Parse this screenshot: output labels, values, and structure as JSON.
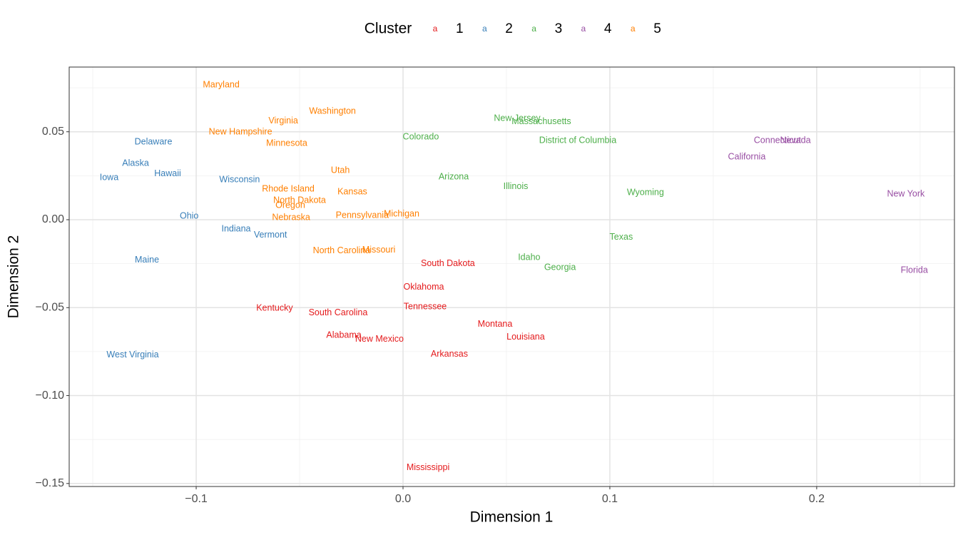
{
  "chart_data": {
    "type": "scatter",
    "marker_glyph": "a",
    "x_label": "Dimension 1",
    "y_label": "Dimension 2",
    "legend": {
      "title": "Cluster",
      "position": "top"
    },
    "grid": true,
    "xlim": [
      -0.1614,
      0.2666
    ],
    "ylim": [
      -0.1517,
      0.0868
    ],
    "xticks": [
      {
        "value": -0.1,
        "label": "−0.1"
      },
      {
        "value": 0,
        "label": "0.0"
      },
      0.1,
      0.2
    ],
    "yticks": [
      {
        "value": -0.15,
        "label": "−0.15"
      },
      {
        "value": -0.1,
        "label": "−0.10"
      },
      {
        "value": -0.05,
        "label": "−0.05"
      },
      {
        "value": 0,
        "label": "0.00"
      },
      0.05
    ],
    "xminor": [
      -0.15,
      -0.05,
      0.05,
      0.15,
      0.25
    ],
    "yminor": [
      -0.125,
      -0.075,
      -0.025,
      0.025,
      0.075
    ],
    "series": [
      {
        "name": "1",
        "color": "#e41a1c",
        "labels": [
          "South Dakota",
          "Oklahoma",
          "Tennessee",
          "Kentucky",
          "South Carolina",
          "Montana",
          "Louisiana",
          "Alabama",
          "New Mexico",
          "Arkansas",
          "Mississippi"
        ],
        "x": [
          0.0217,
          0.01,
          0.0107,
          -0.0621,
          -0.0314,
          0.0445,
          0.0593,
          -0.0286,
          -0.0114,
          0.0224,
          0.0121
        ],
        "values": [
          -0.0251,
          -0.0385,
          -0.0495,
          -0.0503,
          -0.0531,
          -0.0596,
          -0.0669,
          -0.0657,
          -0.0681,
          -0.0766,
          -0.1411
        ]
      },
      {
        "name": "2",
        "color": "#377eb8",
        "labels": [
          "Delaware",
          "Alaska",
          "Iowa",
          "Hawaii",
          "Wisconsin",
          "Ohio",
          "Indiana",
          "Vermont",
          "Maine",
          "West Virginia"
        ],
        "x": [
          -0.1207,
          -0.1293,
          -0.1421,
          -0.1138,
          -0.079,
          -0.1034,
          -0.0807,
          -0.0641,
          -0.1238,
          -0.1307
        ],
        "values": [
          0.0442,
          0.032,
          0.0239,
          0.026,
          0.0227,
          0.002,
          -0.0053,
          -0.0089,
          -0.0231,
          -0.077
        ]
      },
      {
        "name": "3",
        "color": "#4daf4a",
        "labels": [
          "New Jersey",
          "Massachusetts",
          "Colorado",
          "District of Columbia",
          "Arizona",
          "Illinois",
          "Wyoming",
          "Texas",
          "Idaho",
          "Georgia"
        ],
        "x": [
          0.0552,
          0.0669,
          0.0086,
          0.0845,
          0.0245,
          0.0545,
          0.1172,
          0.1055,
          0.061,
          0.0759
        ],
        "values": [
          0.0576,
          0.0556,
          0.047,
          0.045,
          0.0243,
          0.0187,
          0.0154,
          -0.0101,
          -0.0215,
          -0.0272
        ]
      },
      {
        "name": "4",
        "color": "#984ea3",
        "labels": [
          "Connecticut",
          "Nevada",
          "California",
          "New York",
          "Florida"
        ],
        "x": [
          0.181,
          0.1897,
          0.1662,
          0.2431,
          0.2472
        ],
        "values": [
          0.045,
          0.045,
          0.0357,
          0.0146,
          -0.0288
        ]
      },
      {
        "name": "5",
        "color": "#ff7f00",
        "labels": [
          "Maryland",
          "Washington",
          "Virginia",
          "New Hampshire",
          "Minnesota",
          "Utah",
          "Rhode Island",
          "Kansas",
          "North Dakota",
          "Oregon",
          "Nebraska",
          "Pennsylvania",
          "Michigan",
          "North Carolina",
          "Missouri"
        ],
        "x": [
          -0.0879,
          -0.0341,
          -0.0579,
          -0.0786,
          -0.0562,
          -0.0303,
          -0.0555,
          -0.0245,
          -0.05,
          -0.0545,
          -0.0541,
          -0.0197,
          -0.0007,
          -0.0297,
          -0.0117
        ],
        "values": [
          0.0766,
          0.0616,
          0.056,
          0.0499,
          0.0434,
          0.028,
          0.0174,
          0.0158,
          0.0109,
          0.0081,
          0.0012,
          0.0024,
          0.0032,
          -0.0178,
          -0.0174
        ]
      }
    ]
  }
}
